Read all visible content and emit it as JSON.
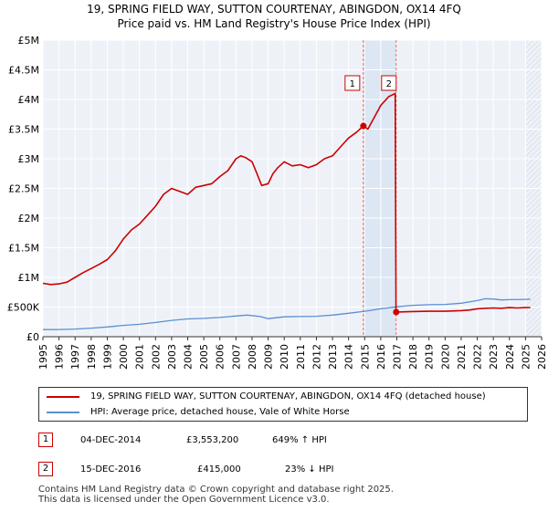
{
  "chart_data": {
    "type": "line",
    "title": "19, SPRING FIELD WAY, SUTTON COURTENAY, ABINGDON, OX14 4FQ",
    "subtitle": "Price paid vs. HM Land Registry's House Price Index (HPI)",
    "xlabel": "",
    "ylabel": "",
    "xlim": [
      1995,
      2026
    ],
    "ylim": [
      0,
      5000000
    ],
    "y_ticks": [
      {
        "value": 0,
        "label": "£0"
      },
      {
        "value": 500000,
        "label": "£500K"
      },
      {
        "value": 1000000,
        "label": "£1M"
      },
      {
        "value": 1500000,
        "label": "£1.5M"
      },
      {
        "value": 2000000,
        "label": "£2M"
      },
      {
        "value": 2500000,
        "label": "£2.5M"
      },
      {
        "value": 3000000,
        "label": "£3M"
      },
      {
        "value": 3500000,
        "label": "£3.5M"
      },
      {
        "value": 4000000,
        "label": "£4M"
      },
      {
        "value": 4500000,
        "label": "£4.5M"
      },
      {
        "value": 5000000,
        "label": "£5M"
      }
    ],
    "x_ticks": [
      "1995",
      "1996",
      "1997",
      "1998",
      "1999",
      "2000",
      "2001",
      "2002",
      "2003",
      "2004",
      "2005",
      "2006",
      "2007",
      "2008",
      "2009",
      "2010",
      "2011",
      "2012",
      "2013",
      "2014",
      "2015",
      "2016",
      "2017",
      "2018",
      "2019",
      "2020",
      "2021",
      "2022",
      "2023",
      "2024",
      "2025",
      "2026"
    ],
    "grid": true,
    "series": [
      {
        "name": "19, SPRING FIELD WAY, SUTTON COURTENAY, ABINGDON, OX14 4FQ (detached house)",
        "color": "#cc0000",
        "x": [
          1995.0,
          1995.5,
          1996.0,
          1996.5,
          1997.0,
          1997.5,
          1998.0,
          1998.5,
          1999.0,
          1999.5,
          2000.0,
          2000.5,
          2001.0,
          2001.5,
          2002.0,
          2002.5,
          2003.0,
          2003.5,
          2004.0,
          2004.5,
          2005.0,
          2005.5,
          2006.0,
          2006.5,
          2007.0,
          2007.3,
          2007.6,
          2008.0,
          2008.3,
          2008.6,
          2009.0,
          2009.3,
          2009.6,
          2010.0,
          2010.5,
          2011.0,
          2011.5,
          2012.0,
          2012.5,
          2013.0,
          2013.5,
          2014.0,
          2014.5,
          2014.92,
          2015.2,
          2015.5,
          2016.0,
          2016.5,
          2016.9,
          2016.95,
          2017.0,
          2017.5,
          2018.0,
          2019.0,
          2020.0,
          2021.0,
          2021.5,
          2022.0,
          2022.5,
          2023.0,
          2023.5,
          2024.0,
          2024.5,
          2025.0,
          2025.3
        ],
        "y": [
          900000,
          880000,
          890000,
          920000,
          1000000,
          1080000,
          1150000,
          1220000,
          1300000,
          1450000,
          1650000,
          1800000,
          1900000,
          2050000,
          2200000,
          2400000,
          2500000,
          2450000,
          2400000,
          2520000,
          2550000,
          2580000,
          2700000,
          2800000,
          3000000,
          3050000,
          3020000,
          2950000,
          2750000,
          2550000,
          2580000,
          2750000,
          2850000,
          2950000,
          2880000,
          2900000,
          2850000,
          2900000,
          3000000,
          3050000,
          3200000,
          3350000,
          3450000,
          3553200,
          3500000,
          3650000,
          3900000,
          4050000,
          4100000,
          415000,
          415000,
          420000,
          425000,
          430000,
          430000,
          440000,
          450000,
          470000,
          480000,
          485000,
          480000,
          490000,
          485000,
          490000,
          492000
        ]
      },
      {
        "name": "HPI: Average price, detached house, Vale of White Horse",
        "color": "#5b8fd0",
        "x": [
          1995.0,
          1996.0,
          1997.0,
          1998.0,
          1999.0,
          2000.0,
          2001.0,
          2002.0,
          2003.0,
          2004.0,
          2005.0,
          2006.0,
          2007.0,
          2007.7,
          2008.5,
          2009.0,
          2009.5,
          2010.0,
          2011.0,
          2012.0,
          2013.0,
          2014.0,
          2015.0,
          2016.0,
          2017.0,
          2018.0,
          2019.0,
          2020.0,
          2021.0,
          2022.0,
          2022.5,
          2023.0,
          2023.5,
          2024.0,
          2025.0,
          2025.3
        ],
        "y": [
          120000,
          122000,
          130000,
          145000,
          165000,
          190000,
          210000,
          240000,
          275000,
          300000,
          310000,
          325000,
          350000,
          365000,
          340000,
          305000,
          320000,
          335000,
          340000,
          345000,
          365000,
          395000,
          430000,
          470000,
          505000,
          530000,
          540000,
          545000,
          565000,
          610000,
          640000,
          635000,
          620000,
          625000,
          630000,
          632000
        ]
      }
    ],
    "annotations": [
      {
        "label": "1",
        "x": 2014.92,
        "y": 3553200
      },
      {
        "label": "2",
        "x": 2016.96,
        "y": 415000
      }
    ]
  },
  "legend": {
    "property_label": "19, SPRING FIELD WAY, SUTTON COURTENAY, ABINGDON, OX14 4FQ (detached house)",
    "hpi_label": "HPI: Average price, detached house, Vale of White Horse",
    "property_color": "#cc0000",
    "hpi_color": "#5b8fd0"
  },
  "transactions": [
    {
      "num": "1",
      "date": "04-DEC-2014",
      "price": "£3,553,200",
      "hpi": "649% ↑ HPI"
    },
    {
      "num": "2",
      "date": "15-DEC-2016",
      "price": "£415,000",
      "hpi": "23% ↓ HPI"
    }
  ],
  "footer": {
    "line1": "Contains HM Land Registry data © Crown copyright and database right 2025.",
    "line2": "This data is licensed under the Open Government Licence v3.0."
  }
}
